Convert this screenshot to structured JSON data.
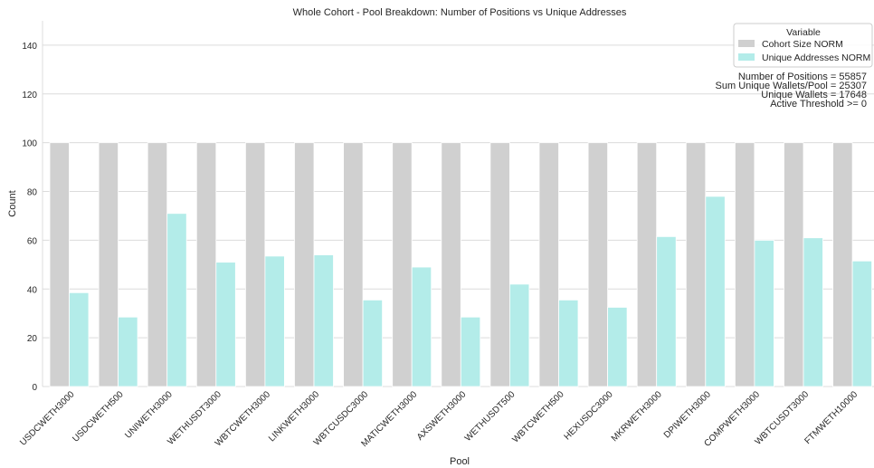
{
  "chart_data": {
    "type": "bar",
    "title": "Whole Cohort - Pool Breakdown: Number of Positions vs Unique Addresses",
    "xlabel": "Pool",
    "ylabel": "Count",
    "ylim": [
      0,
      150
    ],
    "yticks": [
      0,
      20,
      40,
      60,
      80,
      100,
      120,
      140
    ],
    "grid": true,
    "legend": {
      "title": "Variable",
      "placement": "top-right"
    },
    "categories": [
      "USDCWETH3000",
      "USDCWETH500",
      "UNIWETH3000",
      "WETHUSDT3000",
      "WBTCWETH3000",
      "LINKWETH3000",
      "WBTCUSDC3000",
      "MATICWETH3000",
      "AXSWETH3000",
      "WETHUSDT500",
      "WBTCWETH500",
      "HEXUSDC3000",
      "MKRWETH3000",
      "DPIWETH3000",
      "COMPWETH3000",
      "WBTCUSDT3000",
      "FTMWETH10000"
    ],
    "series": [
      {
        "name": "Cohort Size NORM",
        "color": "#d0d0d0",
        "values": [
          100,
          100,
          100,
          100,
          100,
          100,
          100,
          100,
          100,
          100,
          100,
          100,
          100,
          100,
          100,
          100,
          100
        ]
      },
      {
        "name": "Unique Addresses NORM",
        "color": "#b3ece9",
        "values": [
          38.5,
          28.5,
          71,
          51,
          53.5,
          54,
          35.5,
          49,
          28.5,
          42,
          35.5,
          32.5,
          61.5,
          78,
          60,
          61,
          51.5
        ]
      }
    ],
    "annotations": [
      "Number of Positions = 55857",
      "Sum Unique Wallets/Pool = 25307",
      "Unique Wallets = 17648",
      "Active Threshold >= 0"
    ]
  }
}
